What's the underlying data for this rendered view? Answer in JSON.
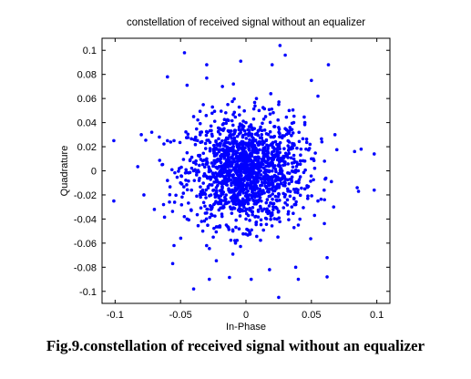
{
  "chart_data": {
    "type": "scatter",
    "title": "constellation of received signal without an equalizer",
    "xlabel": "In-Phase",
    "ylabel": "Quadrature",
    "xlim": [
      -0.11,
      0.11
    ],
    "ylim": [
      -0.11,
      0.11
    ],
    "xticks": [
      -0.1,
      -0.05,
      0,
      0.05,
      0.1
    ],
    "xtick_labels": [
      "-0.1",
      "-0.05",
      "0",
      "0.05",
      "0.1"
    ],
    "yticks": [
      -0.1,
      -0.08,
      -0.06,
      -0.04,
      -0.02,
      0,
      0.02,
      0.04,
      0.06,
      0.08,
      0.1
    ],
    "ytick_labels": [
      "-0.1",
      "-0.08",
      "-0.06",
      "-0.04",
      "-0.02",
      "0",
      "0.02",
      "0.04",
      "0.06",
      "0.08",
      "0.1"
    ],
    "grid": false,
    "legend": "none",
    "marker_color": "#0000ff",
    "series": [
      {
        "points": [
          [
            -0.101,
            0.025
          ],
          [
            -0.101,
            -0.025
          ],
          [
            0.098,
            0.014
          ],
          [
            0.098,
            -0.016
          ],
          [
            0.088,
            0.018
          ],
          [
            0.086,
            -0.017
          ],
          [
            -0.08,
            0.03
          ],
          [
            -0.078,
            -0.02
          ],
          [
            0.083,
            0.016
          ],
          [
            0.085,
            -0.014
          ],
          [
            -0.072,
            0.032
          ],
          [
            -0.07,
            -0.032
          ],
          [
            0.068,
            0.03
          ],
          [
            0.067,
            -0.03
          ],
          [
            -0.06,
            0.025
          ],
          [
            -0.063,
            -0.028
          ],
          [
            0.06,
            -0.024
          ],
          [
            0.058,
            0.024
          ],
          [
            -0.047,
            0.098
          ],
          [
            -0.04,
            -0.098
          ],
          [
            0.026,
            0.104
          ],
          [
            0.025,
            -0.105
          ],
          [
            0.063,
            0.088
          ],
          [
            0.062,
            -0.088
          ],
          [
            0.02,
            0.088
          ],
          [
            -0.06,
            0.078
          ],
          [
            -0.056,
            -0.077
          ],
          [
            0.062,
            -0.072
          ],
          [
            -0.03,
            0.088
          ],
          [
            -0.028,
            -0.09
          ],
          [
            0.03,
            0.096
          ],
          [
            0.04,
            -0.09
          ],
          [
            -0.03,
            0.077
          ],
          [
            0.038,
            -0.08
          ],
          [
            0.05,
            0.075
          ],
          [
            -0.045,
            0.071
          ],
          [
            -0.004,
            0.091
          ],
          [
            0.004,
            -0.09
          ],
          [
            0.055,
            0.062
          ],
          [
            -0.055,
            -0.062
          ],
          [
            0.018,
            -0.082
          ],
          [
            -0.018,
            0.07
          ],
          [
            0.0,
            0.0
          ],
          [
            0.01,
            0.005
          ],
          [
            -0.01,
            -0.005
          ],
          [
            0.005,
            -0.01
          ],
          [
            -0.005,
            0.01
          ],
          [
            0.015,
            0.0
          ],
          [
            -0.015,
            0.0
          ],
          [
            0.0,
            0.015
          ],
          [
            0.0,
            -0.015
          ],
          [
            0.02,
            0.01
          ],
          [
            -0.02,
            -0.01
          ],
          [
            0.01,
            -0.02
          ],
          [
            -0.01,
            0.02
          ],
          [
            0.025,
            0.005
          ],
          [
            -0.025,
            -0.005
          ],
          [
            0.005,
            0.025
          ],
          [
            -0.005,
            -0.025
          ],
          [
            0.03,
            -0.01
          ],
          [
            -0.03,
            0.01
          ],
          [
            0.012,
            0.03
          ],
          [
            -0.012,
            -0.03
          ],
          [
            0.035,
            0.02
          ],
          [
            -0.035,
            -0.02
          ],
          [
            0.02,
            -0.035
          ],
          [
            -0.02,
            0.035
          ],
          [
            0.04,
            0.0
          ],
          [
            -0.04,
            0.0
          ],
          [
            0.0,
            0.04
          ],
          [
            0.0,
            -0.04
          ],
          [
            0.045,
            -0.015
          ],
          [
            -0.045,
            0.015
          ],
          [
            0.015,
            0.045
          ],
          [
            -0.015,
            -0.045
          ],
          [
            0.03,
            0.035
          ],
          [
            -0.03,
            -0.035
          ],
          [
            0.035,
            -0.03
          ],
          [
            -0.035,
            0.03
          ],
          [
            0.05,
            0.01
          ],
          [
            -0.05,
            -0.01
          ],
          [
            0.01,
            0.05
          ],
          [
            -0.01,
            -0.05
          ],
          [
            0.025,
            0.055
          ],
          [
            -0.025,
            -0.055
          ],
          [
            0.055,
            -0.025
          ],
          [
            -0.055,
            0.025
          ],
          [
            0.045,
            0.04
          ],
          [
            -0.045,
            -0.04
          ],
          [
            0.04,
            -0.045
          ],
          [
            -0.04,
            0.045
          ],
          [
            0.008,
            0.06
          ],
          [
            -0.008,
            -0.06
          ],
          [
            0.06,
            0.008
          ],
          [
            -0.06,
            -0.008
          ],
          [
            0.033,
            0.05
          ],
          [
            -0.033,
            -0.05
          ]
        ],
        "additional_points_note": ""
      }
    ]
  },
  "caption": "Fig.9.constellation of received signal without an equalizer"
}
